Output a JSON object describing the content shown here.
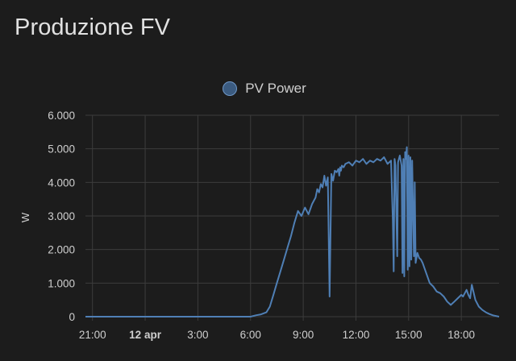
{
  "card": {
    "title": "Produzione FV"
  },
  "chart_data": {
    "type": "line",
    "title": "",
    "xlabel": "",
    "ylabel": "W",
    "ylim": [
      0,
      6000
    ],
    "grid": true,
    "legend_placement": "top-center",
    "x_unit": "hours since 21:00",
    "xlim": [
      -0.4,
      23.15
    ],
    "x_ticks": [
      {
        "x": 0,
        "label": "21:00",
        "bold": false
      },
      {
        "x": 3,
        "label": "12 apr",
        "bold": true
      },
      {
        "x": 6,
        "label": "3:00",
        "bold": false
      },
      {
        "x": 9,
        "label": "6:00",
        "bold": false
      },
      {
        "x": 12,
        "label": "9:00",
        "bold": false
      },
      {
        "x": 15,
        "label": "12:00",
        "bold": false
      },
      {
        "x": 18,
        "label": "15:00",
        "bold": false
      },
      {
        "x": 21,
        "label": "18:00",
        "bold": false
      }
    ],
    "y_ticks": [
      {
        "y": 0,
        "label": "0"
      },
      {
        "y": 1000,
        "label": "1.000"
      },
      {
        "y": 2000,
        "label": "2.000"
      },
      {
        "y": 3000,
        "label": "3.000"
      },
      {
        "y": 4000,
        "label": "4.000"
      },
      {
        "y": 5000,
        "label": "5.000"
      },
      {
        "y": 6000,
        "label": "6.000"
      }
    ],
    "series": [
      {
        "name": "PV Power",
        "color": "#4f7fb5",
        "x": [
          -0.4,
          9.0,
          9.3,
          9.6,
          9.9,
          10.1,
          10.3,
          10.5,
          10.7,
          10.9,
          11.1,
          11.3,
          11.5,
          11.7,
          11.9,
          12.1,
          12.3,
          12.5,
          12.7,
          12.8,
          12.9,
          13.0,
          13.1,
          13.2,
          13.3,
          13.4,
          13.5,
          13.6,
          13.7,
          13.8,
          13.9,
          14.0,
          14.05,
          14.1,
          14.15,
          14.2,
          14.3,
          14.4,
          14.6,
          14.8,
          15.0,
          15.2,
          15.4,
          15.6,
          15.8,
          16.0,
          16.2,
          16.4,
          16.6,
          16.8,
          17.0,
          17.1,
          17.15,
          17.2,
          17.25,
          17.3,
          17.35,
          17.4,
          17.5,
          17.6,
          17.65,
          17.7,
          17.75,
          17.8,
          17.85,
          17.9,
          17.95,
          18.0,
          18.05,
          18.1,
          18.15,
          18.2,
          18.25,
          18.3,
          18.35,
          18.4,
          18.5,
          18.6,
          18.7,
          18.8,
          19.0,
          19.2,
          19.4,
          19.6,
          19.8,
          20.0,
          20.2,
          20.4,
          20.6,
          20.8,
          21.0,
          21.1,
          21.2,
          21.3,
          21.4,
          21.5,
          21.6,
          21.8,
          22.0,
          22.2,
          22.4,
          22.6,
          22.8,
          23.15
        ],
        "y": [
          0,
          0,
          40,
          70,
          130,
          300,
          650,
          1000,
          1350,
          1700,
          2050,
          2400,
          2800,
          3150,
          3000,
          3250,
          3050,
          3350,
          3550,
          3800,
          3700,
          3950,
          3850,
          4200,
          3900,
          4150,
          600,
          4250,
          4050,
          4350,
          4300,
          4400,
          4200,
          4450,
          4350,
          4500,
          4450,
          4550,
          4600,
          4500,
          4650,
          4600,
          4700,
          4550,
          4650,
          4600,
          4700,
          4650,
          4750,
          4550,
          4650,
          2900,
          1350,
          4700,
          4500,
          3100,
          1800,
          4600,
          4800,
          4500,
          1300,
          4700,
          1200,
          4900,
          4700,
          5050,
          1400,
          4800,
          1500,
          4750,
          1700,
          4650,
          3200,
          1800,
          4000,
          1600,
          1900,
          1750,
          1700,
          1600,
          1300,
          1000,
          900,
          750,
          700,
          600,
          450,
          350,
          450,
          550,
          650,
          600,
          700,
          800,
          650,
          550,
          950,
          500,
          300,
          200,
          130,
          80,
          40,
          0
        ]
      }
    ]
  }
}
